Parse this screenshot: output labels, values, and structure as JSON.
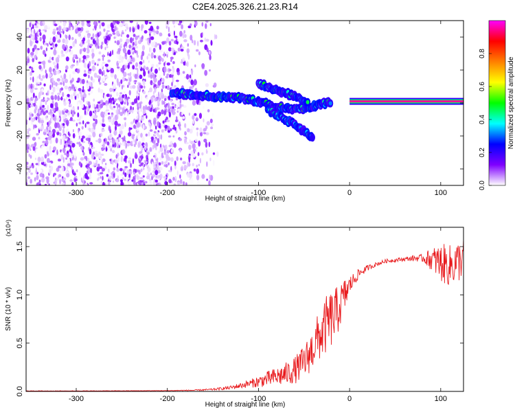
{
  "figure_title": "C2E4.2025.326.21.23.R14",
  "chart_data": [
    {
      "type": "heatmap",
      "title": "C2E4.2025.326.21.23.R14",
      "xlabel": "Height of straight line (km)",
      "ylabel": "Frequency (Hz)",
      "xlim": [
        -355,
        125
      ],
      "ylim": [
        -50,
        50
      ],
      "xticks": [
        -300,
        -200,
        -100,
        0,
        100
      ],
      "yticks": [
        -40,
        -20,
        0,
        20,
        40
      ],
      "xtick_labels": [
        "-300",
        "-200",
        "-100",
        "0",
        "100"
      ],
      "ytick_labels": [
        "-40",
        "-20",
        "0",
        "20",
        "40"
      ],
      "colorbar": {
        "label": "Normalized spectral amplitude",
        "range": [
          0,
          1
        ],
        "ticks": [
          0.0,
          0.2,
          0.4,
          0.6,
          0.8
        ],
        "tick_labels": [
          "0.0",
          "0.2",
          "0.4",
          "0.6",
          "0.8"
        ],
        "colormap": [
          "#ffffff",
          "#7f00ff",
          "#0000ff",
          "#00ffff",
          "#00ff00",
          "#ffff00",
          "#ff8000",
          "#ff0000",
          "#ff00ff"
        ]
      },
      "features": {
        "noise_region_x": [
          -355,
          -160
        ],
        "main_track": [
          [
            -195,
            6
          ],
          [
            -150,
            4
          ],
          [
            -120,
            3
          ],
          [
            -100,
            1
          ],
          [
            -80,
            -2
          ],
          [
            -60,
            -4
          ],
          [
            -40,
            -2
          ],
          [
            -20,
            1
          ],
          [
            0,
            1
          ],
          [
            125,
            1
          ]
        ],
        "upper_branch": [
          [
            -100,
            12
          ],
          [
            -80,
            8
          ],
          [
            -60,
            4
          ],
          [
            -45,
            0
          ]
        ],
        "lower_branch": [
          [
            -90,
            -4
          ],
          [
            -70,
            -10
          ],
          [
            -55,
            -15
          ],
          [
            -40,
            -22
          ]
        ],
        "steady_line": {
          "x": [
            0,
            125
          ],
          "freq": 1,
          "amplitude": 0.95
        }
      }
    },
    {
      "type": "line",
      "title": "",
      "xlabel": "Height of straight line (km)",
      "ylabel": "SNR (10 * v/v)",
      "scale_label": "(x10⁴)",
      "xlim": [
        -355,
        125
      ],
      "ylim": [
        0,
        1.7
      ],
      "xticks": [
        -300,
        -200,
        -100,
        0,
        100
      ],
      "yticks": [
        0.0,
        0.5,
        1.0,
        1.5
      ],
      "xtick_labels": [
        "-300",
        "-200",
        "-100",
        "0",
        "100"
      ],
      "ytick_labels": [
        "0.0",
        "0.5",
        "1.0",
        "1.5"
      ],
      "series": [
        {
          "name": "SNR",
          "color": "#e8191c",
          "x": [
            -355,
            -300,
            -250,
            -200,
            -170,
            -150,
            -130,
            -110,
            -100,
            -90,
            -80,
            -70,
            -60,
            -50,
            -40,
            -35,
            -30,
            -25,
            -20,
            -15,
            -10,
            -5,
            0,
            10,
            20,
            30,
            40,
            50,
            60,
            70,
            80,
            90,
            100,
            110,
            120,
            125
          ],
          "y": [
            0.005,
            0.005,
            0.006,
            0.008,
            0.012,
            0.02,
            0.04,
            0.08,
            0.1,
            0.13,
            0.15,
            0.18,
            0.22,
            0.3,
            0.45,
            0.55,
            0.6,
            0.7,
            0.75,
            0.8,
            0.9,
            1.0,
            1.1,
            1.22,
            1.28,
            1.32,
            1.35,
            1.36,
            1.37,
            1.38,
            1.38,
            1.37,
            1.33,
            1.3,
            1.35,
            1.4
          ],
          "noise": [
            0.002,
            0.002,
            0.002,
            0.003,
            0.005,
            0.01,
            0.02,
            0.04,
            0.06,
            0.08,
            0.1,
            0.12,
            0.14,
            0.18,
            0.22,
            0.25,
            0.28,
            0.3,
            0.3,
            0.28,
            0.22,
            0.18,
            0.1,
            0.05,
            0.03,
            0.02,
            0.02,
            0.02,
            0.02,
            0.03,
            0.04,
            0.12,
            0.2,
            0.22,
            0.22,
            0.2
          ]
        }
      ]
    }
  ]
}
